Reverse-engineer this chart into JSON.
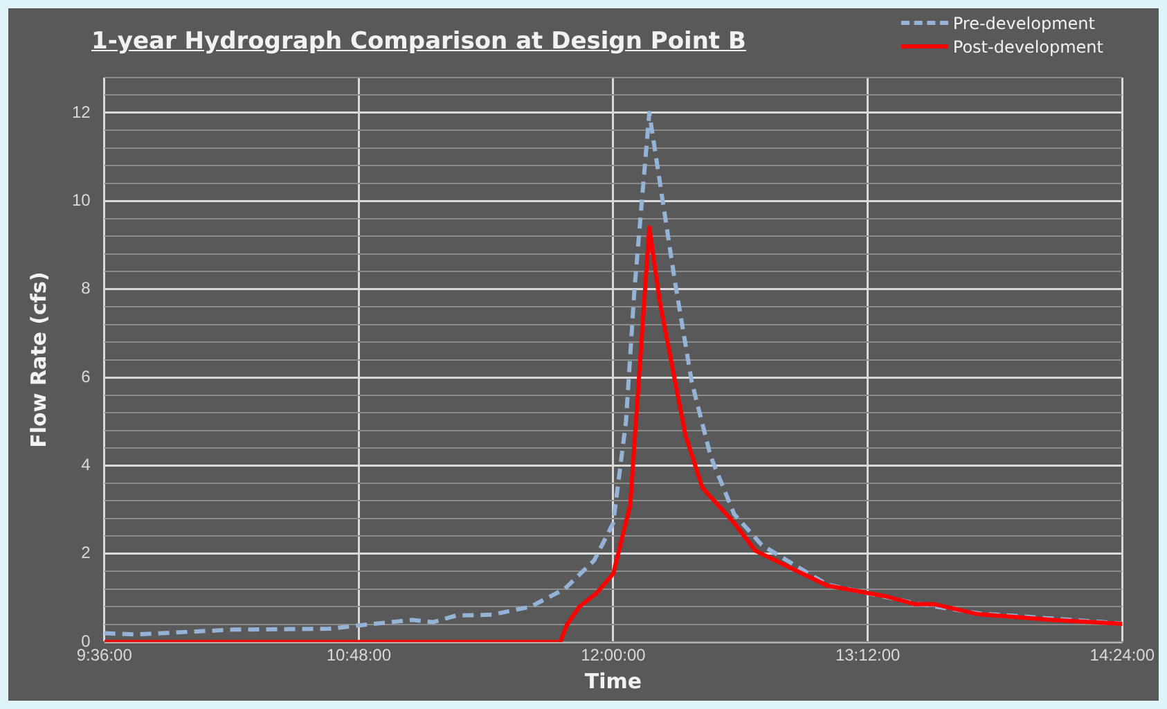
{
  "chart_data": {
    "type": "line",
    "title": "1-year Hydrograph Comparison at Design Point B",
    "xlabel": "Time",
    "ylabel": "Flow Rate (cfs)",
    "xlim": [
      9.6,
      14.4
    ],
    "xticks": [
      {
        "value": 9.6,
        "label": "9:36:00"
      },
      {
        "value": 10.8,
        "label": "10:48:00"
      },
      {
        "value": 12,
        "label": "12:00:00"
      },
      {
        "value": 13.2,
        "label": "13:12:00"
      },
      {
        "value": 14.4,
        "label": "14:24:00"
      }
    ],
    "ylim": [
      0,
      12.8
    ],
    "yticks": [
      0,
      {
        "value": 0.4,
        "label": null
      },
      {
        "value": 0.8,
        "label": null
      },
      {
        "value": 1.2,
        "label": null
      },
      {
        "value": 1.6,
        "label": null
      },
      2,
      {
        "value": 2.4,
        "label": null
      },
      {
        "value": 2.8,
        "label": null
      },
      {
        "value": 3.2,
        "label": null
      },
      {
        "value": 3.6,
        "label": null
      },
      4,
      {
        "value": 4.4,
        "label": null
      },
      {
        "value": 4.8,
        "label": null
      },
      {
        "value": 5.2,
        "label": null
      },
      {
        "value": 5.6,
        "label": null
      },
      6,
      {
        "value": 6.4,
        "label": null
      },
      {
        "value": 6.8,
        "label": null
      },
      {
        "value": 7.2,
        "label": null
      },
      {
        "value": 7.6,
        "label": null
      },
      8,
      {
        "value": 8.4,
        "label": null
      },
      {
        "value": 8.8,
        "label": null
      },
      {
        "value": 9.2,
        "label": null
      },
      {
        "value": 9.6,
        "label": null
      },
      10,
      {
        "value": 10.4,
        "label": null
      },
      {
        "value": 10.8,
        "label": null
      },
      {
        "value": 11.2,
        "label": null
      },
      {
        "value": 11.6,
        "label": null
      },
      12,
      {
        "value": 12.4,
        "label": null
      },
      {
        "value": 12.8,
        "label": null
      }
    ],
    "grid": true,
    "legend": "top right",
    "marker": "none",
    "series": [
      {
        "name": "Pre-development",
        "color": "#95b3d7",
        "line_style": "dashed",
        "x": [
          9.6,
          9.74,
          10.21,
          10.66,
          10.81,
          11.05,
          11.15,
          11.26,
          11.43,
          11.61,
          11.77,
          11.91,
          12.0,
          12.06,
          12.1,
          12.17,
          12.29,
          12.37,
          12.46,
          12.57,
          12.7,
          12.87,
          13.01,
          13.29,
          13.42,
          13.72,
          14.07,
          14.4
        ],
        "values": [
          0.2,
          0.17,
          0.28,
          0.3,
          0.38,
          0.5,
          0.45,
          0.6,
          0.62,
          0.8,
          1.2,
          1.85,
          2.7,
          5,
          8,
          12,
          8.2,
          5.9,
          4.2,
          2.9,
          2.2,
          1.7,
          1.3,
          null,
          0.88,
          0.65,
          null,
          0.42
        ]
      },
      {
        "name": "Post-development",
        "color": "#ff0000",
        "line_style": "solid",
        "x": [
          9.6,
          11.75,
          11.78,
          11.84,
          11.92,
          12.0,
          12.08,
          12.17,
          12.22,
          12.34,
          12.42,
          12.57,
          12.67,
          12.87,
          13.01,
          13.29,
          13.42,
          13.51,
          13.72,
          14.07,
          14.4
        ],
        "values": [
          0,
          0,
          0.38,
          0.8,
          1.1,
          1.55,
          3.1,
          9.4,
          7.7,
          4.7,
          3.5,
          2.7,
          2.07,
          1.6,
          1.28,
          1.03,
          0.86,
          0.86,
          0.63,
          0.5,
          0.41
        ]
      }
    ]
  }
}
